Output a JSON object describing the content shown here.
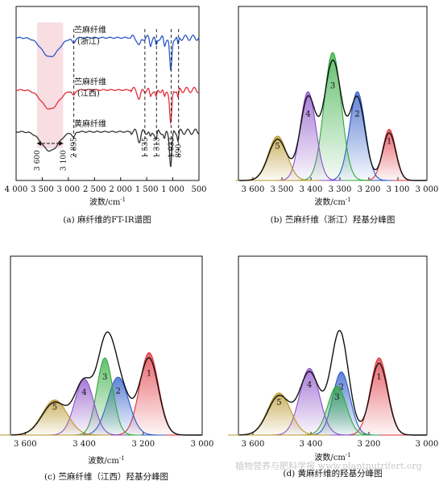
{
  "chart_data": [
    {
      "id": "a",
      "type": "line",
      "caption": "(a) 麻纤维的FT-IR谱图",
      "xlabel": "波数/cm",
      "xlabel_sup": "-1",
      "xlim": [
        4000,
        500
      ],
      "xticks": [
        "4 000",
        "3 500",
        "3 000",
        "2 500",
        "2 000",
        "1 500",
        "1 000",
        "500"
      ],
      "xtick_values": [
        4000,
        3500,
        3000,
        2500,
        2000,
        1500,
        1000,
        500
      ],
      "series": [
        {
          "name": "苎麻纤维",
          "name2": "(浙江)",
          "color": "#2a58c8",
          "offset": 0.82
        },
        {
          "name": "苎麻纤维",
          "name2": "(江西)",
          "color": "#e0303a",
          "offset": 0.52
        },
        {
          "name": "黄麻纤维",
          "name2": "",
          "color": "#333333",
          "offset": 0.28
        }
      ],
      "shaded_region": [
        3600,
        3100
      ],
      "range_labels": [
        "3 600",
        "3 100"
      ],
      "peak_markers": [
        {
          "value": 2895,
          "label": "2 895"
        },
        {
          "value": 1535,
          "label": "1 535"
        },
        {
          "value": 1313,
          "label": "1 313"
        },
        {
          "value": 1033,
          "label": "1 033"
        },
        {
          "value": 890,
          "label": "890"
        }
      ]
    },
    {
      "id": "b",
      "type": "area",
      "caption": "(b) 苎麻纤维（浙江）羟基分峰图",
      "xlabel": "波数/cm",
      "xlabel_sup": "-1",
      "xlim": [
        3650,
        3000
      ],
      "xticks": [
        "3 600",
        "3 500",
        "3 400",
        "3 300",
        "3 200",
        "3 100",
        "3 000"
      ],
      "xtick_values": [
        3600,
        3500,
        3400,
        3300,
        3200,
        3100,
        3000
      ],
      "peaks": [
        {
          "label": "1",
          "center": 3130,
          "height": 0.3,
          "width": 32,
          "color": "#e0303a"
        },
        {
          "label": "2",
          "center": 3240,
          "height": 0.52,
          "width": 38,
          "color": "#2a58c8"
        },
        {
          "label": "3",
          "center": 3325,
          "height": 0.75,
          "width": 42,
          "color": "#2faa3c"
        },
        {
          "label": "4",
          "center": 3410,
          "height": 0.52,
          "width": 38,
          "color": "#8a4fc8"
        },
        {
          "label": "5",
          "center": 3515,
          "height": 0.26,
          "width": 45,
          "color": "#b8962a"
        }
      ]
    },
    {
      "id": "c",
      "type": "area",
      "caption": "(c) 苎麻纤维（江西）羟基分峰图",
      "xlabel": "波数/cm",
      "xlabel_sup": "-1",
      "xlim": [
        3650,
        3000
      ],
      "xticks": [
        "3 600",
        "3 400",
        "3 200",
        "3 000"
      ],
      "xtick_values": [
        3600,
        3400,
        3200,
        3000
      ],
      "peaks": [
        {
          "label": "1",
          "center": 3180,
          "height": 0.47,
          "width": 45,
          "color": "#e0303a"
        },
        {
          "label": "2",
          "center": 3285,
          "height": 0.33,
          "width": 50,
          "color": "#2a58c8"
        },
        {
          "label": "3",
          "center": 3330,
          "height": 0.44,
          "width": 38,
          "color": "#2faa3c"
        },
        {
          "label": "4",
          "center": 3400,
          "height": 0.32,
          "width": 45,
          "color": "#8a4fc8"
        },
        {
          "label": "5",
          "center": 3500,
          "height": 0.2,
          "width": 60,
          "color": "#b8962a"
        }
      ]
    },
    {
      "id": "d",
      "type": "area",
      "caption": "(d) 黄麻纤维的羟基分峰图",
      "xlabel": "波数/cm",
      "xlabel_sup": "-1",
      "xlim": [
        3650,
        3000
      ],
      "xticks": [
        "3 600",
        "3 400",
        "3 200",
        "3 000"
      ],
      "xtick_values": [
        3600,
        3400,
        3200,
        3000
      ],
      "peaks": [
        {
          "label": "1",
          "center": 3165,
          "height": 0.44,
          "width": 42,
          "color": "#e0303a"
        },
        {
          "label": "2",
          "center": 3295,
          "height": 0.36,
          "width": 42,
          "color": "#2a58c8"
        },
        {
          "label": "3",
          "center": 3310,
          "height": 0.28,
          "width": 45,
          "color": "#2faa3c"
        },
        {
          "label": "4",
          "center": 3405,
          "height": 0.38,
          "width": 48,
          "color": "#8a4fc8"
        },
        {
          "label": "5",
          "center": 3510,
          "height": 0.24,
          "width": 55,
          "color": "#b8962a"
        }
      ]
    }
  ],
  "watermark": "植物营养与肥料学报 www.plantnutrifert.org"
}
